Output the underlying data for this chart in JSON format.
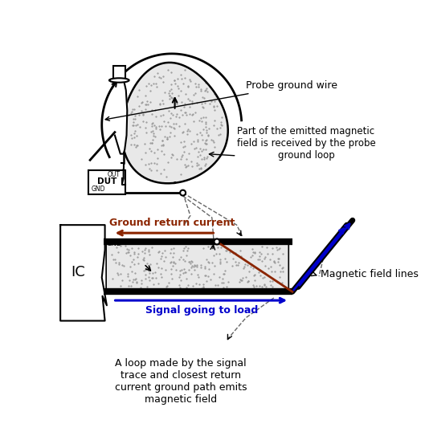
{
  "fig_width": 5.29,
  "fig_height": 5.38,
  "dpi": 100,
  "bg_color": "#ffffff",
  "annotations": {
    "probe_ground_wire": "Probe ground wire",
    "magnetic_field_text": "Part of the emitted magnetic\nfield is received by the probe\nground loop",
    "ground_return_current": "Ground return current",
    "signal_going_to_load": "Signal going to load",
    "magnetic_field_lines": "Magnetic field lines",
    "loop_text": "A loop made by the signal\ntrace and closest return\ncurrent ground path emits\nmagnetic field",
    "IC_label": "IC",
    "DUT_label": "DUT",
    "OUT_label": "OUT",
    "GND_label": "GND",
    "GND2_label": "GND"
  },
  "colors": {
    "black": "#000000",
    "brown_red": "#8B2500",
    "blue_arrow": "#0000CC",
    "dashed_line": "#666666",
    "dot_fill": "#e8e8e8",
    "white": "#ffffff"
  }
}
